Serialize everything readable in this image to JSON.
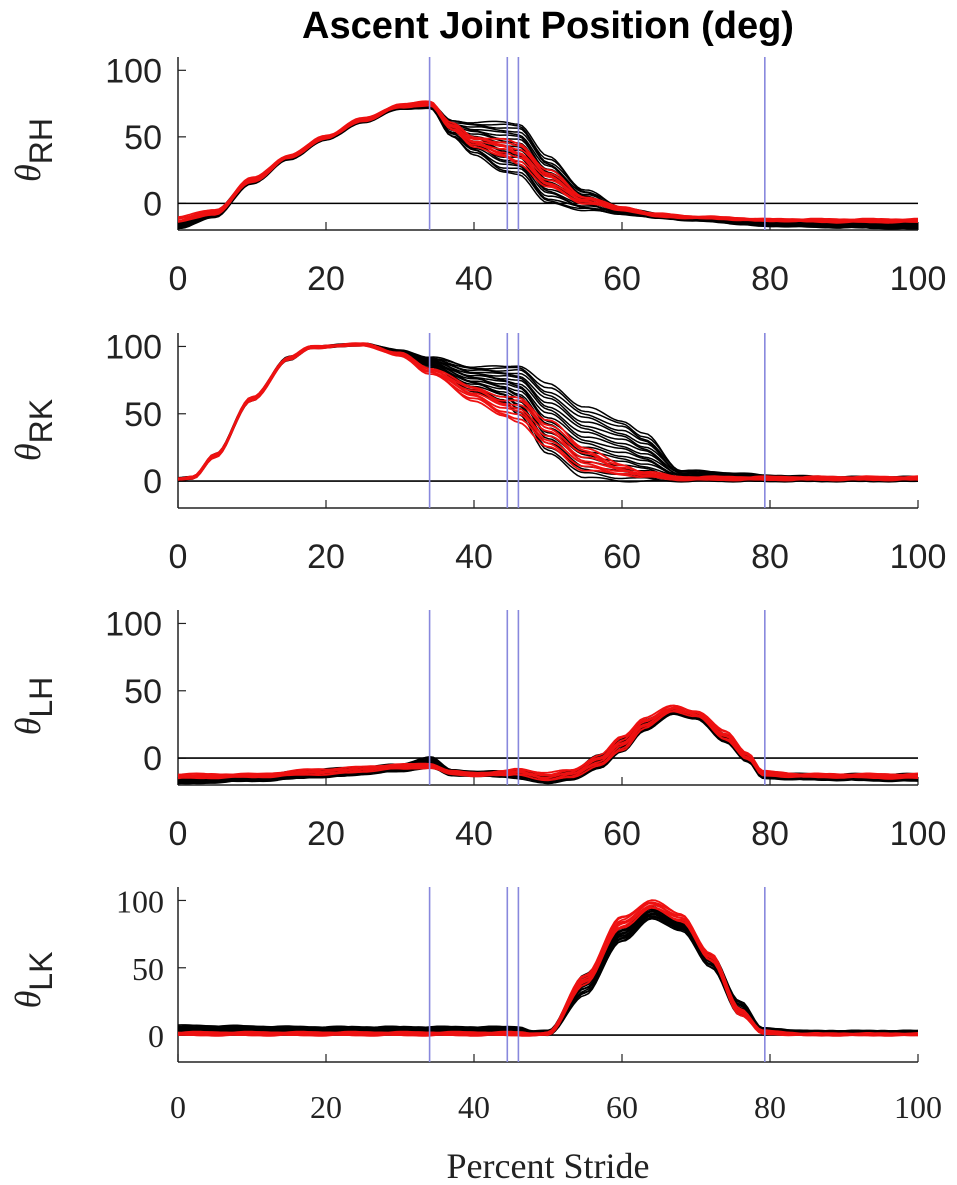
{
  "title": "Ascent Joint Position (deg)",
  "xlabel": "Percent Stride",
  "colors": {
    "black_traces": "#000000",
    "red_traces": "#ee1111",
    "event_lines": "#8888dd",
    "zero_line": "#000000"
  },
  "chart_data": [
    {
      "type": "line",
      "ylabel_symbol": "θ",
      "ylabel_sub": "RH",
      "xlim": [
        0,
        100
      ],
      "ylim": [
        -20,
        110
      ],
      "xticks": [
        "0",
        "20",
        "40",
        "60",
        "80",
        "100"
      ],
      "yticks": [
        "0",
        "50",
        "100"
      ],
      "event_lines_x": [
        34,
        44.5,
        46,
        79.3
      ],
      "series": [
        {
          "name": "black-traces",
          "color": "black",
          "count": 20,
          "x": [
            0,
            5,
            10,
            15,
            20,
            25,
            30,
            34,
            37,
            40,
            44,
            46,
            50,
            55,
            60,
            65,
            70,
            80,
            90,
            100
          ],
          "upper": [
            -15,
            -5,
            18,
            35,
            50,
            63,
            73,
            75,
            62,
            61,
            61,
            60,
            35,
            10,
            -3,
            -8,
            -11,
            -14,
            -15,
            -15
          ],
          "lower": [
            -19,
            -10,
            15,
            33,
            48,
            61,
            71,
            72,
            50,
            37,
            23,
            22,
            0,
            -5,
            -8,
            -11,
            -13,
            -17,
            -18,
            -19
          ]
        },
        {
          "name": "red-traces",
          "color": "red",
          "count": 8,
          "x": [
            0,
            5,
            10,
            15,
            20,
            25,
            30,
            34,
            37,
            40,
            44,
            46,
            50,
            55,
            60,
            65,
            70,
            80,
            90,
            100
          ],
          "upper": [
            -10,
            -5,
            19,
            36,
            51,
            64,
            74,
            77,
            60,
            50,
            48,
            45,
            25,
            5,
            -3,
            -8,
            -10,
            -12,
            -12,
            -12
          ],
          "lower": [
            -14,
            -8,
            16,
            34,
            49,
            62,
            72,
            74,
            55,
            43,
            35,
            30,
            12,
            0,
            -5,
            -10,
            -11,
            -13,
            -14,
            -14
          ]
        }
      ]
    },
    {
      "type": "line",
      "ylabel_symbol": "θ",
      "ylabel_sub": "RK",
      "xlim": [
        0,
        100
      ],
      "ylim": [
        -20,
        110
      ],
      "xticks": [
        "0",
        "20",
        "40",
        "60",
        "80",
        "100"
      ],
      "yticks": [
        "0",
        "50",
        "100"
      ],
      "event_lines_x": [
        34,
        44.5,
        46,
        79.3
      ],
      "series": [
        {
          "name": "black-traces",
          "color": "black",
          "count": 20,
          "x": [
            0,
            2,
            5,
            10,
            15,
            18,
            25,
            30,
            34,
            40,
            44,
            46,
            50,
            55,
            60,
            63,
            68,
            75,
            80,
            90,
            100
          ],
          "upper": [
            2,
            3,
            20,
            62,
            92,
            100,
            102,
            97,
            92,
            85,
            85,
            86,
            72,
            55,
            45,
            35,
            8,
            6,
            4,
            3,
            3
          ],
          "lower": [
            1,
            2,
            18,
            60,
            90,
            99,
            101,
            94,
            85,
            67,
            58,
            50,
            20,
            3,
            0,
            0,
            0,
            0,
            0,
            0,
            0
          ]
        },
        {
          "name": "red-traces",
          "color": "red",
          "count": 8,
          "x": [
            0,
            2,
            5,
            10,
            15,
            18,
            25,
            30,
            34,
            40,
            44,
            46,
            50,
            55,
            60,
            63,
            68,
            75,
            80,
            90,
            100
          ],
          "upper": [
            2,
            3,
            20,
            62,
            92,
            100,
            102,
            95,
            84,
            70,
            62,
            62,
            45,
            25,
            12,
            7,
            3,
            3,
            3,
            3,
            3
          ],
          "lower": [
            1,
            2,
            18,
            60,
            90,
            99,
            101,
            93,
            80,
            60,
            48,
            44,
            25,
            8,
            5,
            3,
            1,
            1,
            1,
            1,
            1
          ]
        }
      ]
    },
    {
      "type": "line",
      "ylabel_symbol": "θ",
      "ylabel_sub": "LH",
      "xlim": [
        0,
        100
      ],
      "ylim": [
        -20,
        110
      ],
      "xticks": [
        "0",
        "20",
        "40",
        "60",
        "80",
        "100"
      ],
      "yticks": [
        "0",
        "50",
        "100"
      ],
      "event_lines_x": [
        34,
        44.5,
        46,
        79.3
      ],
      "series": [
        {
          "name": "black-traces",
          "color": "black",
          "count": 20,
          "x": [
            0,
            10,
            20,
            30,
            34,
            37,
            40,
            44,
            46,
            50,
            53,
            57,
            60,
            63,
            67,
            70,
            74,
            77,
            79,
            85,
            100
          ],
          "upper": [
            -14,
            -13,
            -8,
            -5,
            1,
            -9,
            -10,
            -10,
            -8,
            -13,
            -10,
            2,
            15,
            28,
            37,
            33,
            18,
            3,
            -10,
            -12,
            -12
          ],
          "lower": [
            -19,
            -17,
            -14,
            -10,
            -7,
            -13,
            -13,
            -14,
            -15,
            -19,
            -16,
            -8,
            5,
            20,
            33,
            29,
            12,
            -3,
            -15,
            -16,
            -17
          ]
        },
        {
          "name": "red-traces",
          "color": "red",
          "count": 8,
          "x": [
            0,
            10,
            20,
            30,
            34,
            37,
            40,
            44,
            46,
            50,
            53,
            57,
            60,
            63,
            67,
            70,
            74,
            77,
            79,
            85,
            100
          ],
          "upper": [
            -12,
            -12,
            -8,
            -5,
            -4,
            -10,
            -11,
            -10,
            -8,
            -11,
            -9,
            2,
            16,
            30,
            39,
            35,
            20,
            4,
            -10,
            -12,
            -12
          ],
          "lower": [
            -15,
            -14,
            -12,
            -8,
            -7,
            -12,
            -13,
            -13,
            -12,
            -17,
            -14,
            -6,
            6,
            22,
            35,
            31,
            14,
            -1,
            -13,
            -14,
            -15
          ]
        }
      ]
    },
    {
      "type": "line",
      "ylabel_symbol": "θ",
      "ylabel_sub": "LK",
      "xlim": [
        0,
        100
      ],
      "ylim": [
        -20,
        110
      ],
      "xticks": [
        "0",
        "20",
        "40",
        "60",
        "80",
        "100"
      ],
      "yticks": [
        "0",
        "50",
        "100"
      ],
      "event_lines_x": [
        34,
        44.5,
        46,
        79.3
      ],
      "series": [
        {
          "name": "black-traces",
          "color": "black",
          "count": 20,
          "x": [
            0,
            20,
            40,
            46,
            48,
            50,
            55,
            60,
            64,
            68,
            72,
            76,
            79,
            85,
            100
          ],
          "upper": [
            7,
            6,
            6,
            6,
            3,
            3,
            45,
            80,
            95,
            85,
            60,
            25,
            5,
            3,
            3
          ],
          "lower": [
            1,
            1,
            1,
            1,
            0,
            0,
            30,
            70,
            86,
            78,
            50,
            15,
            2,
            1,
            1
          ]
        },
        {
          "name": "red-traces",
          "color": "red",
          "count": 8,
          "x": [
            0,
            20,
            40,
            46,
            48,
            50,
            55,
            60,
            64,
            68,
            72,
            76,
            79,
            85,
            100
          ],
          "upper": [
            2,
            2,
            2,
            2,
            1,
            2,
            45,
            88,
            100,
            90,
            60,
            20,
            3,
            1,
            1
          ],
          "lower": [
            0,
            0,
            0,
            0,
            0,
            0,
            38,
            80,
            94,
            85,
            55,
            15,
            1,
            0,
            0
          ]
        }
      ]
    }
  ]
}
